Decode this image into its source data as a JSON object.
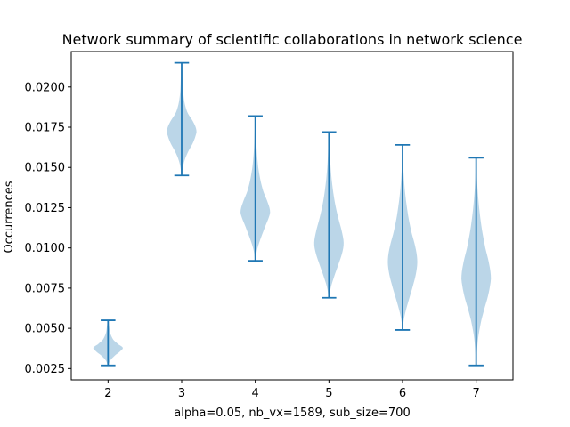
{
  "chart_data": {
    "type": "violin",
    "title": "Network summary of scientific collaborations in network science",
    "xlabel": "alpha=0.05, nb_vx=1589, sub_size=700",
    "ylabel": "Occurrences",
    "x_ticks": [
      "2",
      "3",
      "4",
      "5",
      "6",
      "7"
    ],
    "y_ticks": [
      "0.0025",
      "0.0050",
      "0.0075",
      "0.0100",
      "0.0125",
      "0.0150",
      "0.0175",
      "0.0200"
    ],
    "ylim": [
      0.0018,
      0.0222
    ],
    "grid": false,
    "colors": {
      "violin_fill": "#1f77b4",
      "violin_alpha": 0.3,
      "line": "#1f77b4"
    },
    "violins": [
      {
        "x": 2,
        "min": 0.0027,
        "max": 0.0055,
        "profile": [
          [
            0.0027,
            0.04
          ],
          [
            0.003,
            0.15
          ],
          [
            0.0033,
            0.45
          ],
          [
            0.0036,
            0.85
          ],
          [
            0.0038,
            1.0
          ],
          [
            0.004,
            0.7
          ],
          [
            0.0043,
            0.35
          ],
          [
            0.0047,
            0.15
          ],
          [
            0.0051,
            0.08
          ],
          [
            0.0055,
            0.03
          ]
        ]
      },
      {
        "x": 3,
        "min": 0.0145,
        "max": 0.0215,
        "profile": [
          [
            0.0145,
            0.03
          ],
          [
            0.015,
            0.08
          ],
          [
            0.0155,
            0.22
          ],
          [
            0.016,
            0.45
          ],
          [
            0.0165,
            0.75
          ],
          [
            0.017,
            0.95
          ],
          [
            0.0173,
            1.0
          ],
          [
            0.0178,
            0.8
          ],
          [
            0.0184,
            0.4
          ],
          [
            0.019,
            0.2
          ],
          [
            0.0197,
            0.1
          ],
          [
            0.0205,
            0.06
          ],
          [
            0.0215,
            0.03
          ]
        ]
      },
      {
        "x": 4,
        "min": 0.0092,
        "max": 0.0182,
        "profile": [
          [
            0.0092,
            0.03
          ],
          [
            0.0097,
            0.08
          ],
          [
            0.0102,
            0.22
          ],
          [
            0.0108,
            0.45
          ],
          [
            0.0114,
            0.7
          ],
          [
            0.012,
            0.95
          ],
          [
            0.0123,
            1.0
          ],
          [
            0.0128,
            0.85
          ],
          [
            0.0135,
            0.55
          ],
          [
            0.0142,
            0.35
          ],
          [
            0.015,
            0.2
          ],
          [
            0.016,
            0.1
          ],
          [
            0.017,
            0.05
          ],
          [
            0.0182,
            0.02
          ]
        ]
      },
      {
        "x": 5,
        "min": 0.0069,
        "max": 0.0172,
        "profile": [
          [
            0.0069,
            0.03
          ],
          [
            0.0075,
            0.12
          ],
          [
            0.0082,
            0.35
          ],
          [
            0.009,
            0.65
          ],
          [
            0.0097,
            0.9
          ],
          [
            0.0103,
            1.0
          ],
          [
            0.011,
            0.88
          ],
          [
            0.0118,
            0.65
          ],
          [
            0.0126,
            0.45
          ],
          [
            0.0134,
            0.3
          ],
          [
            0.0143,
            0.18
          ],
          [
            0.0155,
            0.08
          ],
          [
            0.0165,
            0.04
          ],
          [
            0.0172,
            0.02
          ]
        ]
      },
      {
        "x": 6,
        "min": 0.0049,
        "max": 0.0164,
        "profile": [
          [
            0.0049,
            0.02
          ],
          [
            0.0055,
            0.08
          ],
          [
            0.0062,
            0.25
          ],
          [
            0.007,
            0.5
          ],
          [
            0.0078,
            0.75
          ],
          [
            0.0085,
            0.93
          ],
          [
            0.0092,
            1.0
          ],
          [
            0.01,
            0.88
          ],
          [
            0.011,
            0.6
          ],
          [
            0.012,
            0.38
          ],
          [
            0.0132,
            0.2
          ],
          [
            0.0145,
            0.08
          ],
          [
            0.0155,
            0.04
          ],
          [
            0.0164,
            0.02
          ]
        ]
      },
      {
        "x": 7,
        "min": 0.0027,
        "max": 0.0156,
        "profile": [
          [
            0.0027,
            0.02
          ],
          [
            0.0035,
            0.05
          ],
          [
            0.0045,
            0.15
          ],
          [
            0.0055,
            0.35
          ],
          [
            0.0063,
            0.58
          ],
          [
            0.007,
            0.8
          ],
          [
            0.0077,
            0.95
          ],
          [
            0.0082,
            1.0
          ],
          [
            0.009,
            0.88
          ],
          [
            0.01,
            0.62
          ],
          [
            0.0112,
            0.38
          ],
          [
            0.0125,
            0.2
          ],
          [
            0.014,
            0.07
          ],
          [
            0.0156,
            0.02
          ]
        ]
      }
    ]
  }
}
